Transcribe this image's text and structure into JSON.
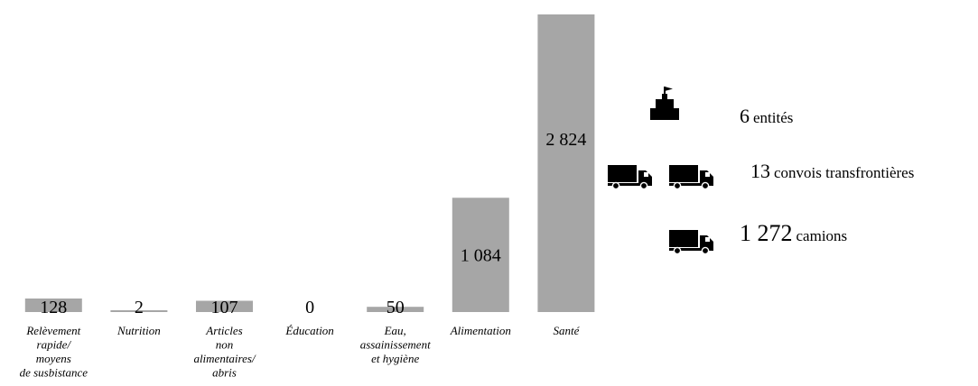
{
  "chart_data": {
    "type": "bar",
    "categories": [
      [
        "Relèvement",
        "rapide/",
        "moyens",
        "de susbistance"
      ],
      [
        "Nutrition"
      ],
      [
        "Articles",
        "non",
        "alimentaires/",
        "abris"
      ],
      [
        "Éducation"
      ],
      [
        "Eau,",
        "assainissement",
        "et hygiène"
      ],
      [
        "Alimentation"
      ],
      [
        "Santé"
      ]
    ],
    "values": [
      128,
      2,
      107,
      0,
      50,
      1084,
      2824
    ],
    "value_labels": [
      "128",
      "2",
      "107",
      "0",
      "50",
      "1 084",
      "2 824"
    ],
    "ylim": [
      0,
      2824
    ],
    "grid": false,
    "bar_color": "#a6a6a6"
  },
  "stats": {
    "entities": {
      "number": "6",
      "label": "entités",
      "icon": "building-flag-icon"
    },
    "convoys": {
      "number": "13",
      "label": "convois transfrontières",
      "icon": "truck-icon"
    },
    "trucks": {
      "number": "1 272",
      "label": "camions",
      "icon": "truck-icon"
    }
  }
}
